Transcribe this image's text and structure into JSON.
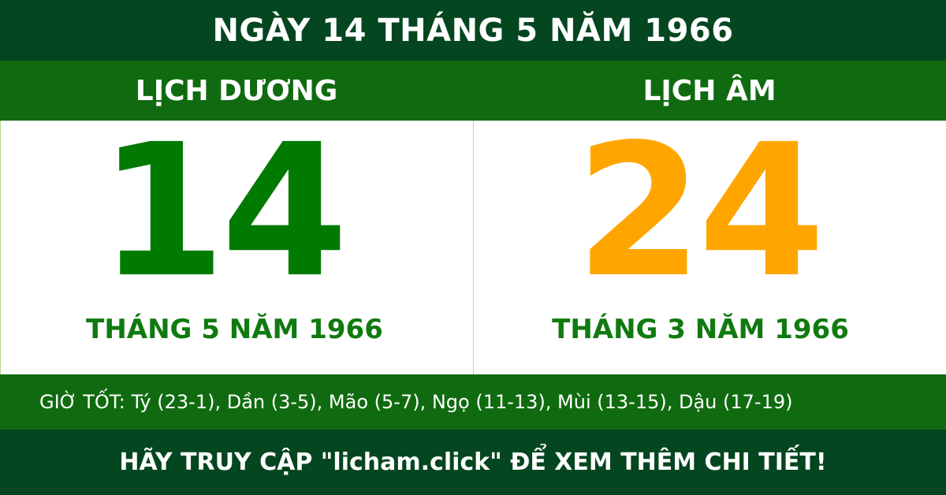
{
  "header": {
    "title": "NGÀY 14 THÁNG 5 NĂM 1966"
  },
  "solar": {
    "label": "LỊCH DƯƠNG",
    "day": "14",
    "month_year": "THÁNG 5 NĂM 1966"
  },
  "lunar": {
    "label": "LỊCH ÂM",
    "day": "24",
    "month_year": "THÁNG 3 NĂM 1966"
  },
  "good_hours": "GIỜ TỐT: Tý (23-1), Dần (3-5), Mão (5-7), Ngọ (11-13), Mùi (13-15), Dậu (17-19)",
  "footer": {
    "text": "HÃY TRUY CẬP \"licham.click\" ĐỂ XEM THÊM CHI TIẾT!"
  },
  "colors": {
    "dark_green": "#03461f",
    "green": "#106b10",
    "solar_day": "#007a00",
    "lunar_day": "#ffa500"
  }
}
